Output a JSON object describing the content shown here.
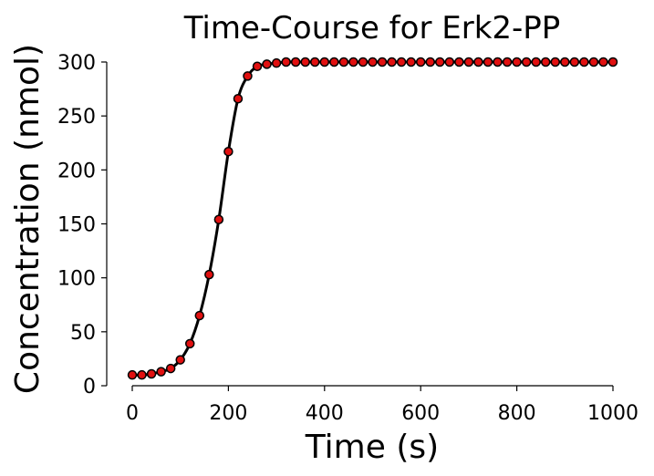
{
  "chart_data": {
    "type": "line",
    "title": "Time-Course for Erk2-PP",
    "xlabel": "Time (s)",
    "ylabel": "Concentration (nmol)",
    "xlim": [
      0,
      1000
    ],
    "ylim": [
      0,
      300
    ],
    "xticks": [
      0,
      200,
      400,
      600,
      800,
      1000
    ],
    "yticks": [
      0,
      50,
      100,
      150,
      200,
      250,
      300
    ],
    "grid": false,
    "colors": {
      "line": "#000000",
      "marker_fill": "#e01010",
      "marker_edge": "#000000"
    },
    "series": [
      {
        "x": [
          0,
          20,
          40,
          60,
          80,
          100,
          120,
          140,
          160,
          180,
          200,
          220,
          240,
          260,
          280,
          300,
          320,
          340,
          360,
          380,
          400,
          420,
          440,
          460,
          480,
          500,
          520,
          540,
          560,
          580,
          600,
          620,
          640,
          660,
          680,
          700,
          720,
          740,
          760,
          780,
          800,
          820,
          840,
          860,
          880,
          900,
          920,
          940,
          960,
          980,
          1000
        ],
        "values": [
          10,
          10,
          11,
          13,
          16,
          24,
          39,
          65,
          103,
          154,
          217,
          266,
          287,
          296,
          298,
          299,
          300,
          300,
          300,
          300,
          300,
          300,
          300,
          300,
          300,
          300,
          300,
          300,
          300,
          300,
          300,
          300,
          300,
          300,
          300,
          300,
          300,
          300,
          300,
          300,
          300,
          300,
          300,
          300,
          300,
          300,
          300,
          300,
          300,
          300,
          300
        ]
      }
    ]
  }
}
